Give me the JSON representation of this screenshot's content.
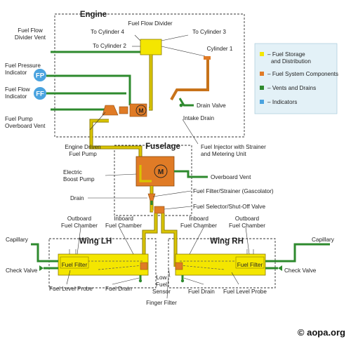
{
  "sections": {
    "engine": "Engine",
    "fuselage": "Fuselage",
    "wing_lh": "Wing LH",
    "wing_rh": "Wing RH"
  },
  "labels": {
    "fuel_flow_divider": "Fuel Flow Divider",
    "to_cylinder_4": "To Cylinder 4",
    "to_cylinder_3": "To Cylinder 3",
    "to_cylinder_2": "To Cylinder 2",
    "cylinder_1": "Cylinder 1",
    "fuel_flow_divider_vent": [
      "Fuel Flow",
      "Divider Vent"
    ],
    "fuel_pressure_indicator": [
      "Fuel Pressure",
      "Indicator"
    ],
    "fuel_flow_indicator": [
      "Fuel Flow",
      "Indicator"
    ],
    "fuel_pump_overboard_vent": [
      "Fuel Pump",
      "Overboard Vent"
    ],
    "drain_valve": "Drain Valve",
    "intake_drain": "Intake Drain",
    "engine_driven_fuel_pump": [
      "Engine Driven",
      "Fuel Pump"
    ],
    "fuel_injector": [
      "Fuel Injector with Strainer",
      "and Metering Unit"
    ],
    "electric_boost_pump": [
      "Electric",
      "Boost Pump"
    ],
    "overboard_vent": "Overboard Vent",
    "drain": "Drain",
    "fuel_filter_strainer": "Fuel Filter/Strainer (Gascolator)",
    "fuel_selector": "Fuel Selector/Shut-Off Valve",
    "outboard_fuel_chamber_l": [
      "Outboard",
      "Fuel Chamber"
    ],
    "inboard_fuel_chamber_l": [
      "Inboard",
      "Fuel Chamber"
    ],
    "inboard_fuel_chamber_r": [
      "Inboard",
      "Fuel Chamber"
    ],
    "outboard_fuel_chamber_r": [
      "Outboard",
      "Fuel Chamber"
    ],
    "capillary_l": "Capillary",
    "capillary_r": "Capillary",
    "fuel_filter_l": "Fuel Filter",
    "fuel_filter_r": "Fuel Filter",
    "check_valve_l": "Check Valve",
    "check_valve_r": "Check Valve",
    "fuel_level_probe_l": "Fuel Level Probe",
    "fuel_drain_l": "Fuel Drain",
    "low_fuel_sensor": [
      "Low",
      "Fuel",
      "Sensor"
    ],
    "finger_filter": "Finger Filter",
    "fuel_drain_r": "Fuel Drain",
    "fuel_level_probe_r": "Fuel Level Probe"
  },
  "indicators": {
    "fp": "FP",
    "ff": "FF"
  },
  "pump_symbol": "M",
  "legend": [
    {
      "key": "storage",
      "color": "#f4e600",
      "label": [
        "– Fuel Storage",
        "and Distribution"
      ]
    },
    {
      "key": "components",
      "color": "#e07b26",
      "label": [
        "– Fuel System Components"
      ]
    },
    {
      "key": "vents",
      "color": "#2e8a2e",
      "label": [
        "– Vents and Drains"
      ]
    },
    {
      "key": "indicators",
      "color": "#4aa3df",
      "label": [
        "– Indicators"
      ]
    }
  ],
  "copyright": "© aopa.org",
  "colors": {
    "fuel_storage": "#f4e600",
    "components": "#e07b26",
    "vents": "#2e8a2e",
    "indicators": "#4aa3df",
    "legend_bg": "#e3f1f7"
  }
}
